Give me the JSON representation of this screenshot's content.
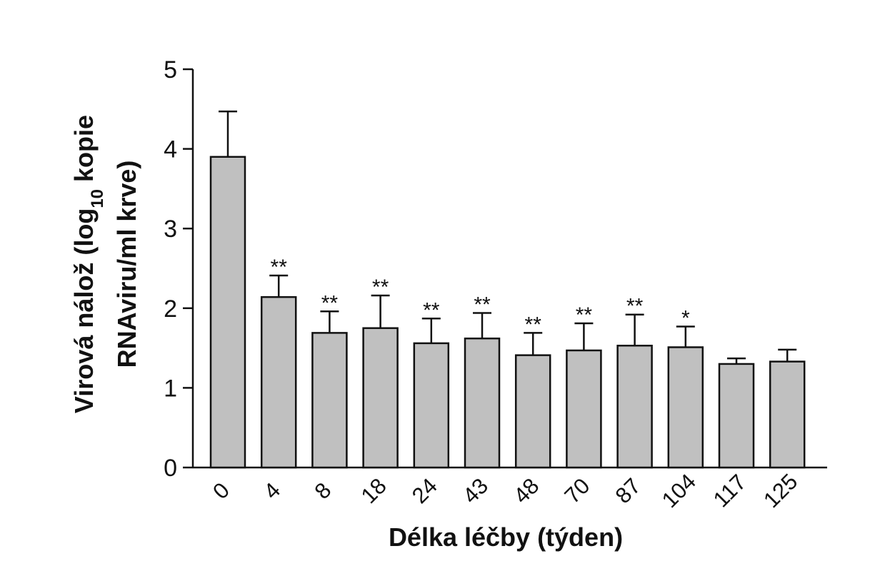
{
  "chart_data": {
    "type": "bar",
    "categories": [
      "0",
      "4",
      "8",
      "18",
      "24",
      "43",
      "48",
      "70",
      "87",
      "104",
      "117",
      "125"
    ],
    "values": [
      3.9,
      2.14,
      1.69,
      1.75,
      1.56,
      1.62,
      1.41,
      1.47,
      1.53,
      1.51,
      1.3,
      1.33
    ],
    "error_upper": [
      4.47,
      2.41,
      1.96,
      2.16,
      1.87,
      1.94,
      1.69,
      1.81,
      1.92,
      1.77,
      1.37,
      1.48
    ],
    "significance": [
      "",
      "**",
      "**",
      "**",
      "**",
      "**",
      "**",
      "**",
      "**",
      "*",
      "",
      ""
    ],
    "xlabel": "Délka léčby (týden)",
    "ylabel_line1_pre": "Virová nálož (log",
    "ylabel_line1_sub": "10",
    "ylabel_line1_post": " kopie",
    "ylabel_line2": "RNAviru/ml krve)",
    "ylim": [
      0,
      5
    ],
    "yticks": [
      "0",
      "1",
      "2",
      "3",
      "4",
      "5"
    ],
    "bar_color": "#c0c0c0",
    "grid": false
  }
}
